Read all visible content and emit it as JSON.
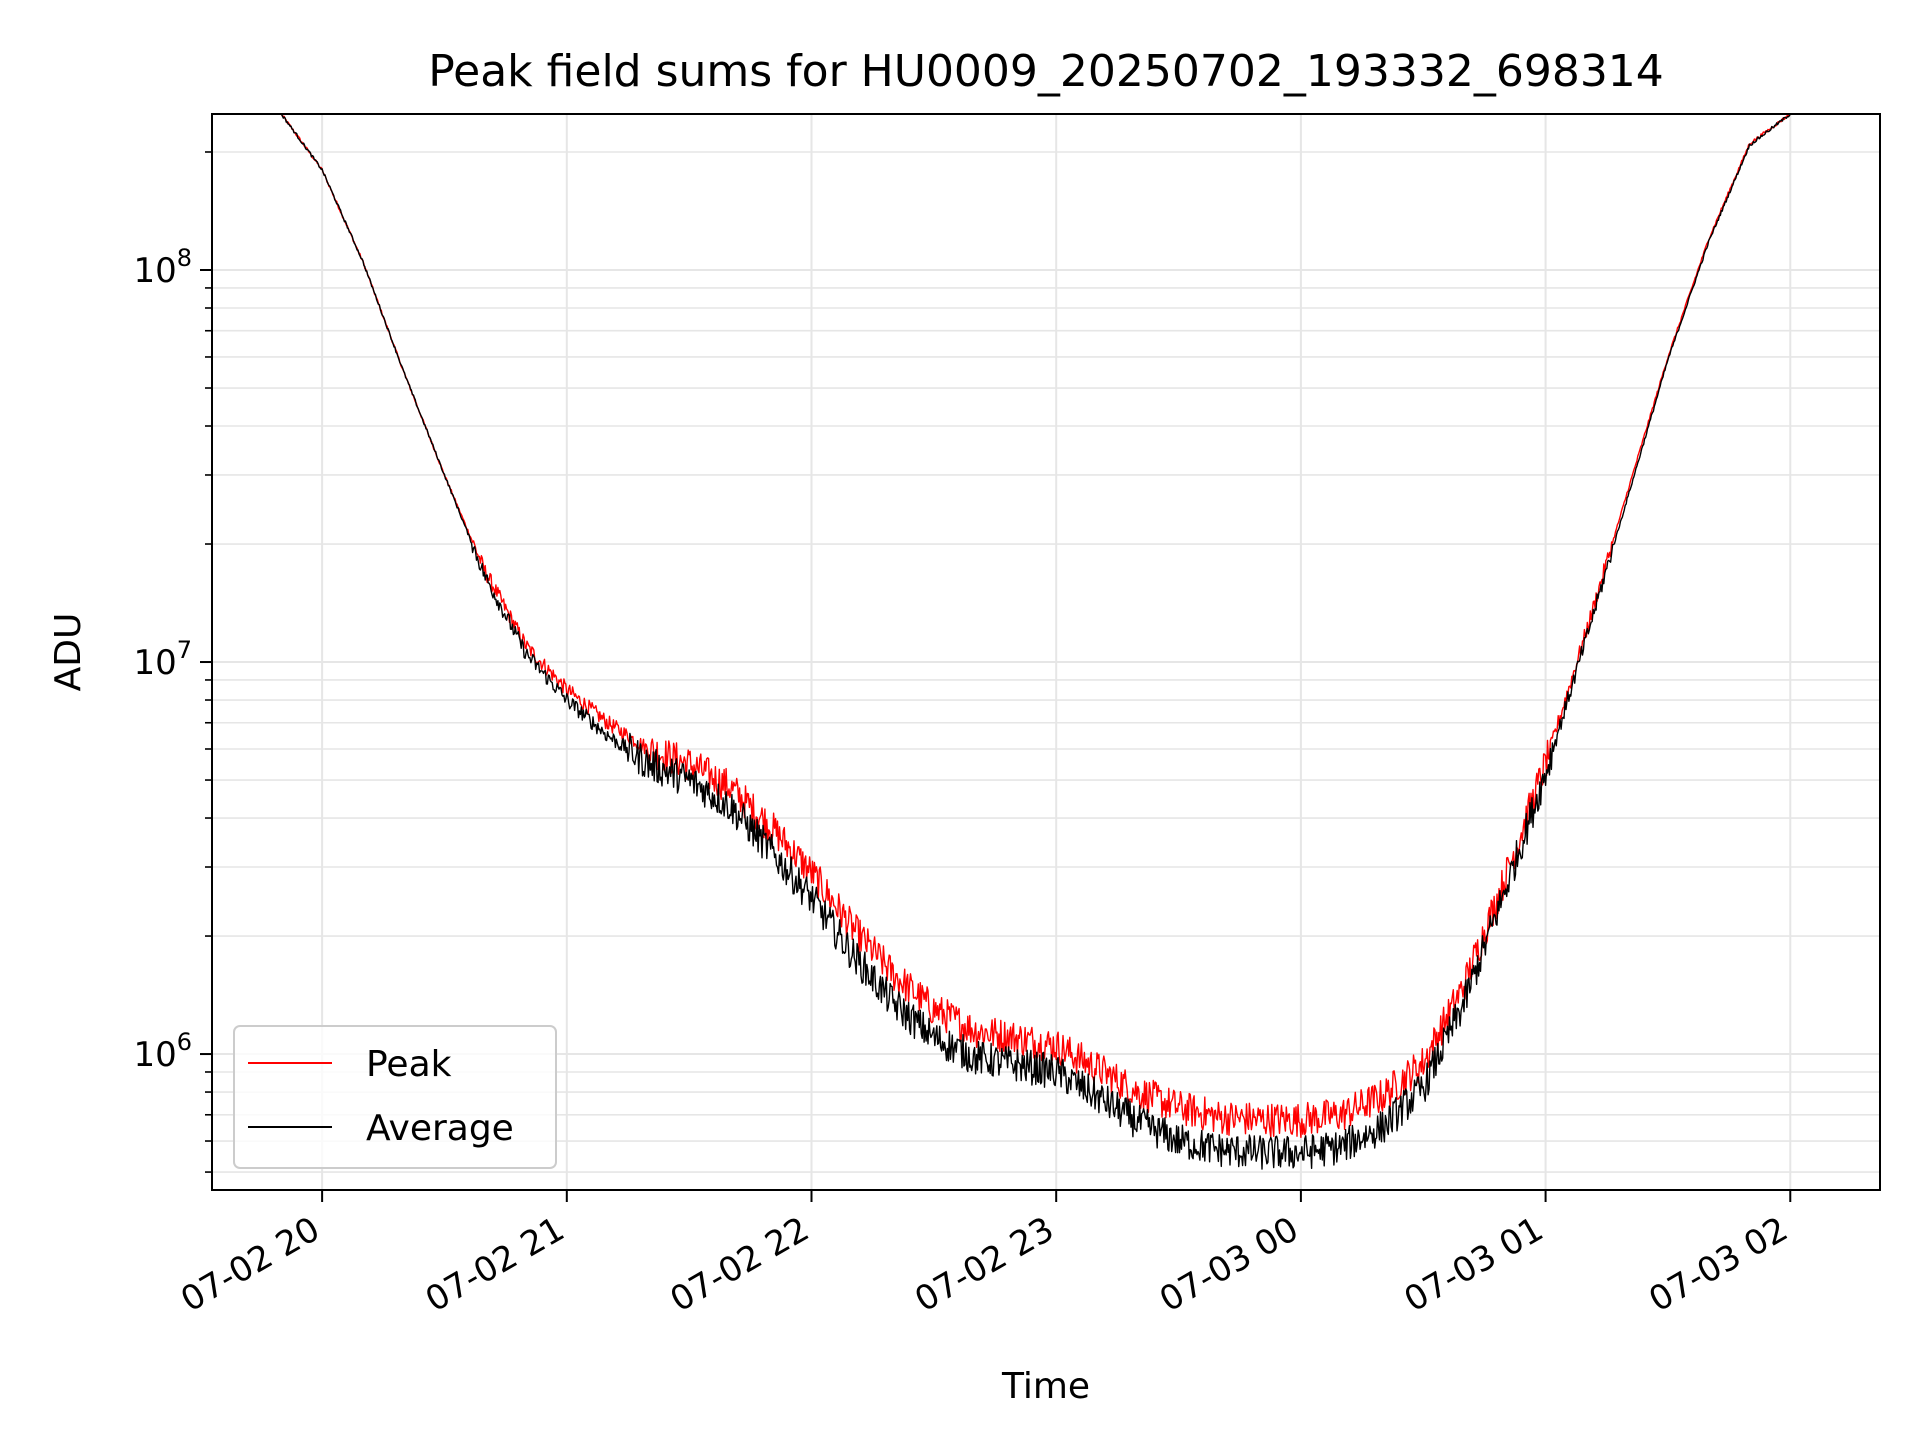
{
  "chart_data": {
    "type": "line",
    "title": "Peak field sums for HU0009_20250702_193332_698314",
    "xlabel": "Time",
    "ylabel": "ADU",
    "yscale": "log",
    "ylim": [
      450000,
      250000000
    ],
    "xlim": [
      "2025-07-02 19:33",
      "2025-07-03 02:22"
    ],
    "x_ticks": [
      {
        "value": "2025-07-02 20:00",
        "label": "07-02 20"
      },
      {
        "value": "2025-07-02 21:00",
        "label": "07-02 21"
      },
      {
        "value": "2025-07-02 22:00",
        "label": "07-02 22"
      },
      {
        "value": "2025-07-02 23:00",
        "label": "07-02 23"
      },
      {
        "value": "2025-07-03 00:00",
        "label": "07-03 00"
      },
      {
        "value": "2025-07-03 01:00",
        "label": "07-03 01"
      },
      {
        "value": "2025-07-03 02:00",
        "label": "07-03 02"
      }
    ],
    "y_ticks": [
      {
        "value": 1000000,
        "base": "10",
        "exp": "6"
      },
      {
        "value": 10000000,
        "base": "10",
        "exp": "7"
      },
      {
        "value": 100000000,
        "base": "10",
        "exp": "8"
      }
    ],
    "grid": true,
    "legend_position": "lower-left",
    "series": [
      {
        "name": "Peak",
        "color": "#ff0000",
        "points": [
          [
            "2025-07-02 19:50",
            250000000
          ],
          [
            "2025-07-02 20:00",
            180000000
          ],
          [
            "2025-07-02 20:10",
            105000000
          ],
          [
            "2025-07-02 20:20",
            55000000
          ],
          [
            "2025-07-02 20:30",
            30000000
          ],
          [
            "2025-07-02 20:40",
            17000000
          ],
          [
            "2025-07-02 20:50",
            11000000
          ],
          [
            "2025-07-02 21:00",
            8500000
          ],
          [
            "2025-07-02 21:10",
            7000000
          ],
          [
            "2025-07-02 21:20",
            6000000
          ],
          [
            "2025-07-02 21:30",
            5500000
          ],
          [
            "2025-07-02 21:40",
            4800000
          ],
          [
            "2025-07-02 21:50",
            3800000
          ],
          [
            "2025-07-02 22:00",
            2900000
          ],
          [
            "2025-07-02 22:10",
            2100000
          ],
          [
            "2025-07-02 22:20",
            1600000
          ],
          [
            "2025-07-02 22:30",
            1300000
          ],
          [
            "2025-07-02 22:40",
            1150000
          ],
          [
            "2025-07-02 22:50",
            1100000
          ],
          [
            "2025-07-02 23:00",
            1050000
          ],
          [
            "2025-07-02 23:10",
            920000
          ],
          [
            "2025-07-02 23:20",
            800000
          ],
          [
            "2025-07-02 23:30",
            730000
          ],
          [
            "2025-07-02 23:40",
            690000
          ],
          [
            "2025-07-02 23:50",
            680000
          ],
          [
            "2025-07-03 00:00",
            680000
          ],
          [
            "2025-07-03 00:10",
            700000
          ],
          [
            "2025-07-03 00:20",
            780000
          ],
          [
            "2025-07-03 00:30",
            950000
          ],
          [
            "2025-07-03 00:40",
            1500000
          ],
          [
            "2025-07-03 00:50",
            2800000
          ],
          [
            "2025-07-03 01:00",
            5500000
          ],
          [
            "2025-07-03 01:10",
            12000000
          ],
          [
            "2025-07-03 01:20",
            27000000
          ],
          [
            "2025-07-03 01:30",
            60000000
          ],
          [
            "2025-07-03 01:40",
            120000000
          ],
          [
            "2025-07-03 01:50",
            210000000
          ],
          [
            "2025-07-03 02:00",
            250000000
          ]
        ]
      },
      {
        "name": "Average",
        "color": "#000000",
        "points": [
          [
            "2025-07-02 19:50",
            250000000
          ],
          [
            "2025-07-02 20:00",
            180000000
          ],
          [
            "2025-07-02 20:10",
            105000000
          ],
          [
            "2025-07-02 20:20",
            55000000
          ],
          [
            "2025-07-02 20:30",
            30000000
          ],
          [
            "2025-07-02 20:40",
            16500000
          ],
          [
            "2025-07-02 20:50",
            10500000
          ],
          [
            "2025-07-02 21:00",
            8000000
          ],
          [
            "2025-07-02 21:10",
            6500000
          ],
          [
            "2025-07-02 21:20",
            5500000
          ],
          [
            "2025-07-02 21:30",
            5000000
          ],
          [
            "2025-07-02 21:40",
            4300000
          ],
          [
            "2025-07-02 21:50",
            3300000
          ],
          [
            "2025-07-02 22:00",
            2500000
          ],
          [
            "2025-07-02 22:10",
            1800000
          ],
          [
            "2025-07-02 22:20",
            1350000
          ],
          [
            "2025-07-02 22:30",
            1100000
          ],
          [
            "2025-07-02 22:40",
            980000
          ],
          [
            "2025-07-02 22:50",
            940000
          ],
          [
            "2025-07-02 23:00",
            900000
          ],
          [
            "2025-07-02 23:10",
            780000
          ],
          [
            "2025-07-02 23:20",
            670000
          ],
          [
            "2025-07-02 23:30",
            600000
          ],
          [
            "2025-07-02 23:40",
            570000
          ],
          [
            "2025-07-02 23:50",
            560000
          ],
          [
            "2025-07-03 00:00",
            560000
          ],
          [
            "2025-07-03 00:10",
            580000
          ],
          [
            "2025-07-03 00:20",
            650000
          ],
          [
            "2025-07-03 00:30",
            820000
          ],
          [
            "2025-07-03 00:40",
            1350000
          ],
          [
            "2025-07-03 00:50",
            2600000
          ],
          [
            "2025-07-03 01:00",
            5200000
          ],
          [
            "2025-07-03 01:10",
            11500000
          ],
          [
            "2025-07-03 01:20",
            26000000
          ],
          [
            "2025-07-03 01:30",
            59000000
          ],
          [
            "2025-07-03 01:40",
            118000000
          ],
          [
            "2025-07-03 01:50",
            208000000
          ],
          [
            "2025-07-03 02:00",
            250000000
          ]
        ]
      }
    ]
  }
}
